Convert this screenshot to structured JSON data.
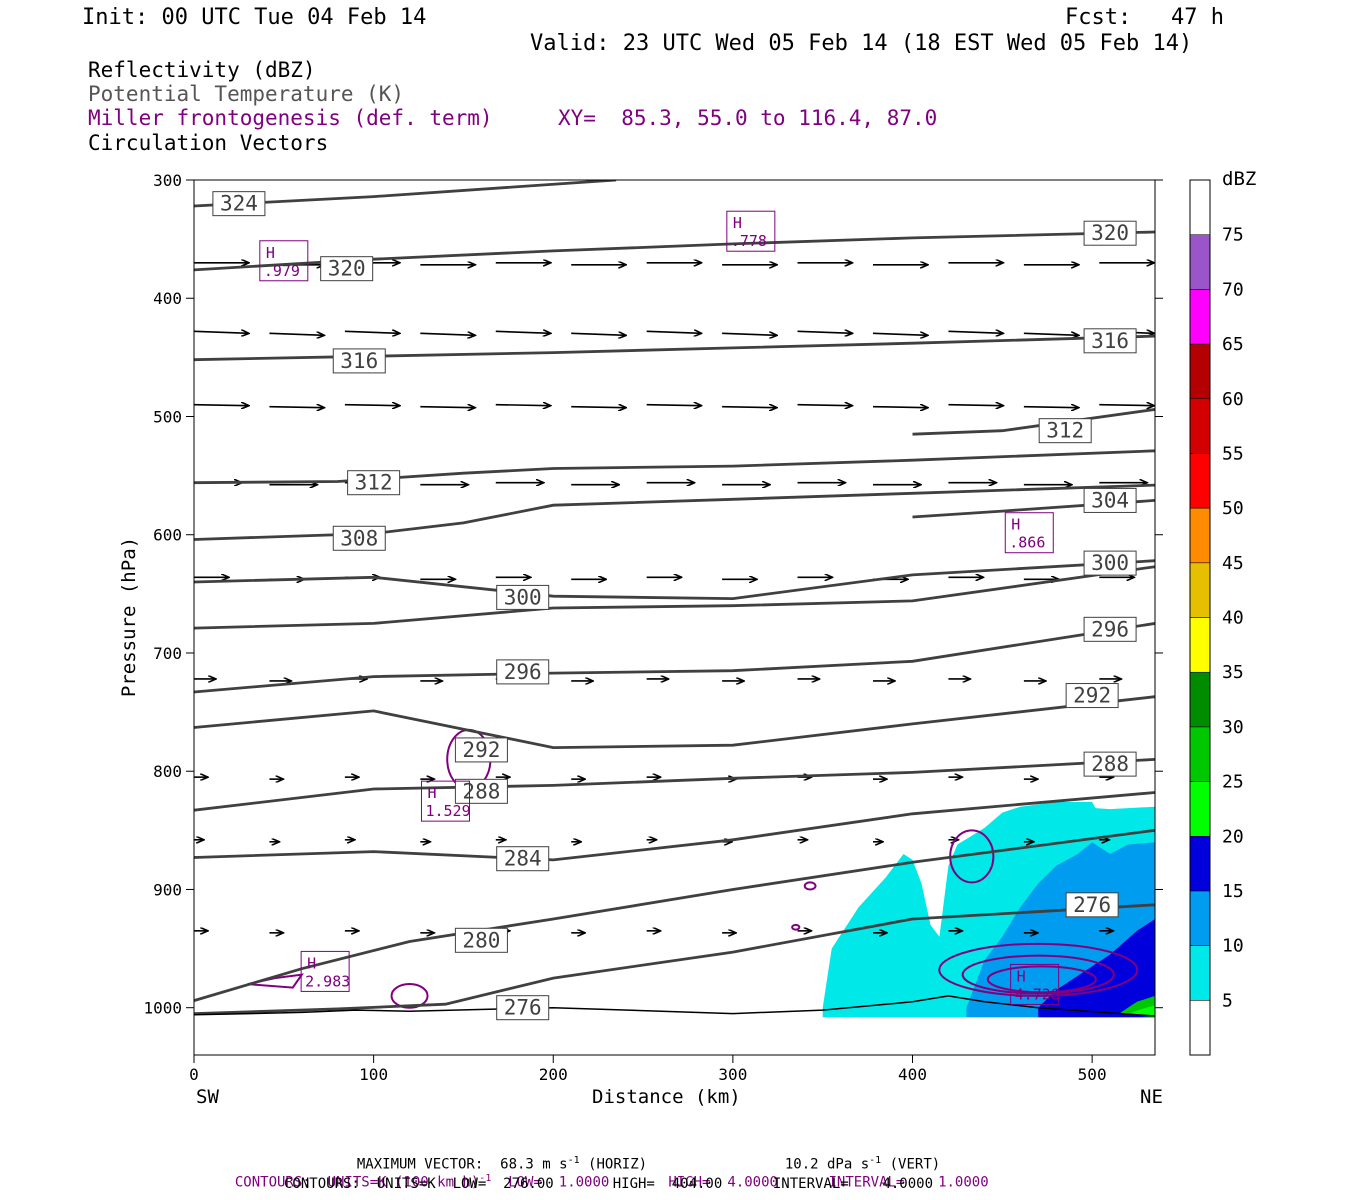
{
  "header": {
    "init": "Init: 00 UTC Tue 04 Feb 14",
    "fcst": "Fcst:   47 h",
    "valid": "Valid: 23 UTC Wed 05 Feb 14 (18 EST Wed 05 Feb 14)",
    "fields": [
      "Reflectivity (dBZ)",
      "Potential Temperature (K)",
      "Miller frontogenesis (def. term)",
      "Circulation Vectors"
    ],
    "xy": "XY=  85.3, 55.0 to 116.4, 87.0"
  },
  "colors": {
    "theta": "#404040",
    "fronto": "#800080",
    "dbz": [
      "#00e8e8",
      "#009cf0",
      "#0000dd",
      "#00ff00",
      "#00c800",
      "#008c00",
      "#ffff00",
      "#e6bf00",
      "#ff8c00",
      "#ff0000",
      "#d20000",
      "#b40000",
      "#ff00ff",
      "#9955c9",
      "#ffffff"
    ]
  },
  "chart_data": {
    "type": "cross-section",
    "xlabel": "Distance (km)",
    "ylabel": "Pressure (hPa)",
    "xlim": [
      0,
      535
    ],
    "ylim": [
      1040,
      300
    ],
    "x_ticks": [
      0,
      100,
      200,
      300,
      400,
      500
    ],
    "y_ticks": [
      300,
      400,
      500,
      600,
      700,
      800,
      900,
      1000
    ],
    "x_end_labels": {
      "left": "SW",
      "right": "NE"
    },
    "colorbar": {
      "title": "dBZ",
      "levels": [
        5,
        10,
        15,
        20,
        25,
        30,
        35,
        40,
        45,
        50,
        55,
        60,
        65,
        70,
        75
      ]
    },
    "theta_contours": [
      {
        "value": 324,
        "label": "324",
        "label_at": [
          25,
          320
        ],
        "points": [
          [
            0,
            322
          ],
          [
            100,
            314
          ],
          [
            235,
            300
          ]
        ]
      },
      {
        "value": 320,
        "label": "320",
        "label_at": [
          510,
          345
        ],
        "points": [
          [
            0,
            376
          ],
          [
            100,
            367
          ],
          [
            200,
            360
          ],
          [
            300,
            354
          ],
          [
            400,
            349
          ],
          [
            535,
            344
          ]
        ]
      },
      {
        "value": 320,
        "label": "320",
        "label_at": [
          85,
          375
        ],
        "points": []
      },
      {
        "value": 316,
        "label": "316",
        "label_at": [
          92,
          453
        ],
        "points": [
          [
            0,
            452
          ],
          [
            100,
            449
          ],
          [
            200,
            446
          ],
          [
            300,
            442
          ],
          [
            400,
            438
          ],
          [
            535,
            432
          ]
        ]
      },
      {
        "value": 316,
        "label": "316",
        "label_at": [
          510,
          436
        ],
        "points": []
      },
      {
        "value": 312,
        "label": "312",
        "label_at": [
          100,
          556
        ],
        "points": [
          [
            0,
            556
          ],
          [
            80,
            555
          ],
          [
            150,
            548
          ],
          [
            200,
            544
          ],
          [
            300,
            542
          ],
          [
            400,
            537
          ],
          [
            535,
            529
          ]
        ]
      },
      {
        "value": 312,
        "label": "312",
        "label_at": [
          485,
          512
        ],
        "points": [
          [
            400,
            515
          ],
          [
            450,
            512
          ],
          [
            535,
            494
          ]
        ]
      },
      {
        "value": 308,
        "label": "308",
        "label_at": [
          92,
          603
        ],
        "points": [
          [
            0,
            604
          ],
          [
            100,
            599
          ],
          [
            150,
            590
          ],
          [
            200,
            575
          ],
          [
            300,
            570
          ],
          [
            400,
            565
          ],
          [
            535,
            558
          ]
        ]
      },
      {
        "value": 304,
        "label": "304",
        "label_at": [
          510,
          571
        ],
        "points": [
          [
            400,
            585
          ],
          [
            450,
            580
          ],
          [
            535,
            571
          ]
        ]
      },
      {
        "value": 300,
        "label": "300",
        "label_at": [
          183,
          653
        ],
        "points": [
          [
            0,
            640
          ],
          [
            100,
            636
          ],
          [
            200,
            652
          ],
          [
            300,
            654
          ],
          [
            400,
            634
          ],
          [
            535,
            622
          ]
        ]
      },
      {
        "value": 300,
        "label": "300",
        "label_at": [
          510,
          624
        ],
        "points": []
      },
      {
        "value": 296,
        "label": "296",
        "label_at": [
          183,
          716
        ],
        "points": [
          [
            0,
            679
          ],
          [
            100,
            675
          ],
          [
            200,
            662
          ],
          [
            300,
            660
          ],
          [
            400,
            656
          ],
          [
            535,
            627
          ]
        ]
      },
      {
        "value": 296,
        "label": "296",
        "label_at": [
          510,
          680
        ],
        "points": [
          [
            0,
            733
          ],
          [
            100,
            720
          ],
          [
            200,
            717
          ],
          [
            300,
            715
          ],
          [
            400,
            707
          ],
          [
            535,
            675
          ]
        ]
      },
      {
        "value": 292,
        "label": "292",
        "label_at": [
          160,
          782
        ],
        "points": [
          [
            0,
            763
          ],
          [
            100,
            749
          ],
          [
            200,
            780
          ],
          [
            300,
            778
          ],
          [
            400,
            760
          ],
          [
            535,
            737
          ]
        ]
      },
      {
        "value": 292,
        "label": "292",
        "label_at": [
          500,
          736
        ],
        "points": []
      },
      {
        "value": 288,
        "label": "288",
        "label_at": [
          160,
          817
        ],
        "points": [
          [
            0,
            833
          ],
          [
            100,
            815
          ],
          [
            200,
            812
          ],
          [
            300,
            806
          ],
          [
            400,
            801
          ],
          [
            535,
            790
          ]
        ]
      },
      {
        "value": 288,
        "label": "288",
        "label_at": [
          510,
          794
        ],
        "points": []
      },
      {
        "value": 284,
        "label": "284",
        "label_at": [
          183,
          874
        ],
        "points": [
          [
            0,
            873
          ],
          [
            100,
            868
          ],
          [
            200,
            875
          ],
          [
            300,
            858
          ],
          [
            400,
            836
          ],
          [
            535,
            818
          ]
        ]
      },
      {
        "value": 280,
        "label": "280",
        "label_at": [
          160,
          943
        ],
        "points": [
          [
            0,
            994
          ],
          [
            60,
            967
          ],
          [
            120,
            944
          ],
          [
            200,
            925
          ],
          [
            300,
            900
          ],
          [
            400,
            877
          ],
          [
            535,
            850
          ]
        ]
      },
      {
        "value": 276,
        "label": "276",
        "label_at": [
          183,
          1000
        ],
        "points": [
          [
            0,
            1005
          ],
          [
            80,
            1001
          ],
          [
            140,
            997
          ],
          [
            200,
            975
          ],
          [
            300,
            953
          ],
          [
            400,
            925
          ],
          [
            535,
            913
          ]
        ]
      },
      {
        "value": 276,
        "label": "276",
        "label_at": [
          500,
          913
        ],
        "points": []
      }
    ],
    "fronto_maxima": [
      {
        "label": "H",
        "value": ".979",
        "at": [
          50,
          370
        ]
      },
      {
        "label": "H",
        "value": ".778",
        "at": [
          310,
          345
        ]
      },
      {
        "label": "H",
        "value": ".866",
        "at": [
          465,
          600
        ]
      },
      {
        "label": "H",
        "value": "1.529",
        "at": [
          140,
          827
        ]
      },
      {
        "label": "H",
        "value": "2.983",
        "at": [
          73,
          971
        ]
      },
      {
        "label": "H",
        "value": "4.728",
        "at": [
          468,
          982
        ]
      }
    ],
    "footer": {
      "max_vector": "MAXIMUM VECTOR:  68.3 m s",
      "max_vector_sup": "-1",
      "max_vector_h": " (HORIZ)",
      "max_vector_v": "10.2 dPa s",
      "max_vector_v_sup": "-1",
      "max_vector_v_tail": " (VERT)",
      "contours1_a": "CONTOURS:  UNITS=K (100 km h)",
      "contours1_sup": "-1",
      "contours1_b": "  LOW=  1.0000       HIGH=  4.0000      INTERVAL=    1.0000",
      "contours2": "CONTOURS:  UNITS=K  LOW=  276.00       HIGH=  404.00      INTERVAL=    4.0000"
    }
  }
}
